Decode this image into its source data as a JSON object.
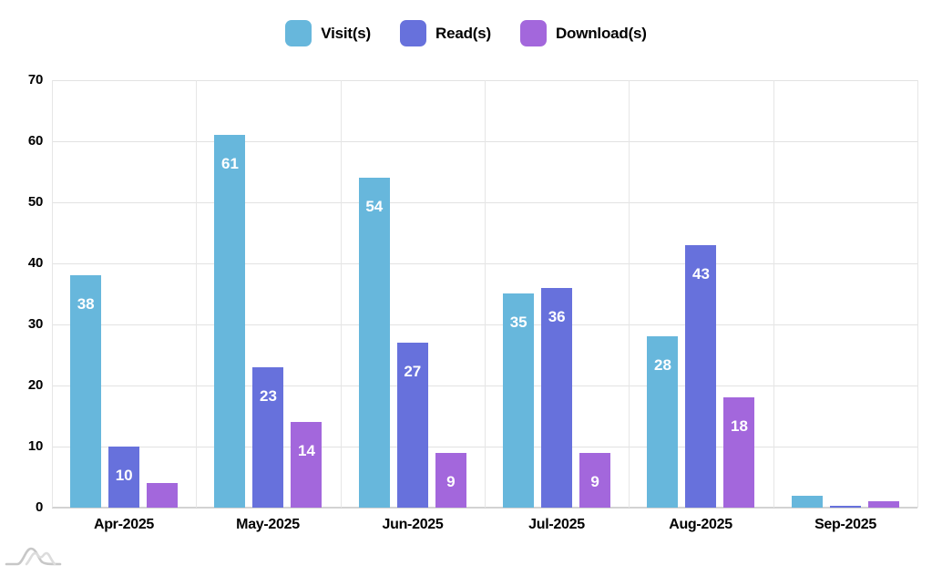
{
  "chart_data": {
    "type": "bar",
    "title": "",
    "xlabel": "",
    "ylabel": "",
    "categories": [
      "Apr-2025",
      "May-2025",
      "Jun-2025",
      "Jul-2025",
      "Aug-2025",
      "Sep-2025"
    ],
    "series": [
      {
        "name": "Visit(s)",
        "color": "#67B7DC",
        "values": [
          38,
          61,
          54,
          35,
          28,
          2
        ]
      },
      {
        "name": "Read(s)",
        "color": "#6771DC",
        "values": [
          10,
          23,
          27,
          36,
          43,
          0
        ]
      },
      {
        "name": "Download(s)",
        "color": "#A367DC",
        "values": [
          4,
          14,
          9,
          9,
          18,
          1
        ]
      }
    ],
    "ylim": [
      0,
      70
    ],
    "y_ticks": [
      0,
      10,
      20,
      30,
      40,
      50,
      60,
      70
    ],
    "grid": true,
    "legend_position": "top",
    "value_label_style": "white bold inside bar near top; hidden on very short bars"
  },
  "colors": {
    "background": "#ffffff",
    "grid_line": "#e2e2e2",
    "axis_base_line": "#d2d2d2",
    "axis_text": "#000000",
    "value_label_text": "#ffffff"
  },
  "watermark": {
    "icon": "amcharts-logo"
  }
}
